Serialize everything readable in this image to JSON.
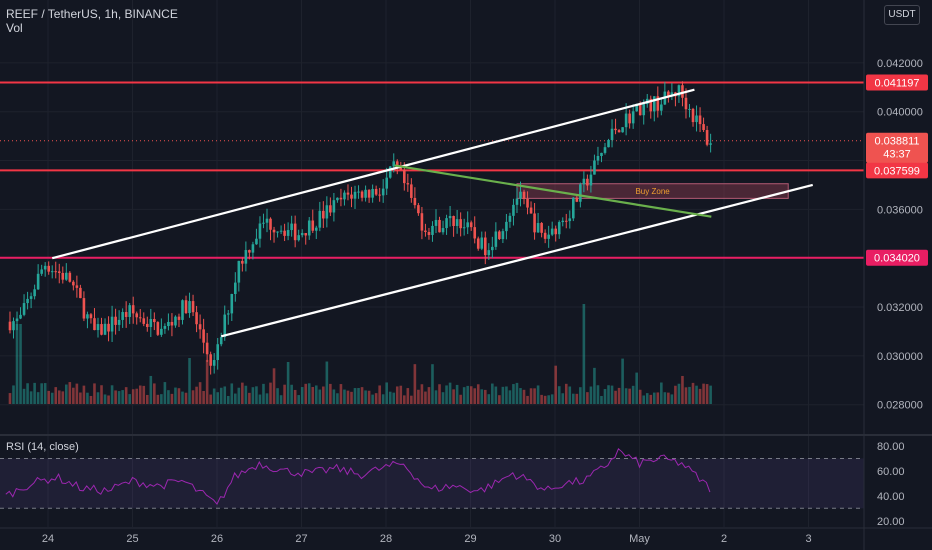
{
  "header": {
    "symbol_line": "REEF / TetherUS, 1h, BINANCE",
    "vol_label": "Vol",
    "currency_button": "USDT",
    "rsi_label": "RSI (14, close)"
  },
  "colors": {
    "background": "#131722",
    "up": "#26a69a",
    "down": "#ef5350",
    "trend_line": "#ffffff",
    "green_line": "#6ab04c",
    "level_red": "#f23645",
    "level_pink": "#e91e63",
    "buy_zone": "#8e3b50",
    "rsi_line": "#9c27b0",
    "axis_text": "#b2b5be"
  },
  "chart_data": [
    {
      "type": "candlestick",
      "title": "REEF / TetherUS, 1h, BINANCE",
      "x_ticks": [
        "24",
        "25",
        "26",
        "27",
        "28",
        "29",
        "30",
        "May",
        "2",
        "3"
      ],
      "y_ticks": [
        "0.042000",
        "0.040000",
        "0.038000",
        "0.036000",
        "0.034000",
        "0.032000",
        "0.030000",
        "0.028000"
      ],
      "ylim": [
        0.0268,
        0.0431
      ],
      "last_price": "0.038811",
      "countdown": "43:37",
      "price_levels": [
        {
          "label": "0.041197",
          "value": 0.041197,
          "color": "#f23645"
        },
        {
          "label": "0.037599",
          "value": 0.037599,
          "color": "#f23645"
        },
        {
          "label": "0.034020",
          "value": 0.03402,
          "color": "#e91e63"
        }
      ],
      "annotations": {
        "buy_zone_label": "Buy Zone",
        "buy_zone_range": [
          0.03645,
          0.03705
        ],
        "upper_channel": {
          "from": [
            24.05,
            0.034
          ],
          "to": [
            31.65,
            0.0409
          ]
        },
        "lower_channel": {
          "from": [
            26.05,
            0.0308
          ],
          "to": [
            33.05,
            0.037
          ]
        },
        "green_line": {
          "from": [
            28.1,
            0.0378
          ],
          "to": [
            31.85,
            0.0357
          ]
        }
      },
      "key_points": [
        [
          23.7,
          0.0314
        ],
        [
          24.0,
          0.0338
        ],
        [
          24.3,
          0.0331
        ],
        [
          24.6,
          0.0309
        ],
        [
          25.0,
          0.0318
        ],
        [
          25.4,
          0.031
        ],
        [
          25.7,
          0.0322
        ],
        [
          26.0,
          0.0295
        ],
        [
          26.3,
          0.0338
        ],
        [
          26.6,
          0.0355
        ],
        [
          27.0,
          0.035
        ],
        [
          27.3,
          0.0358
        ],
        [
          27.6,
          0.0366
        ],
        [
          28.0,
          0.0368
        ],
        [
          28.15,
          0.0378
        ],
        [
          28.5,
          0.0352
        ],
        [
          28.9,
          0.0356
        ],
        [
          29.2,
          0.0344
        ],
        [
          29.4,
          0.0352
        ],
        [
          29.6,
          0.0366
        ],
        [
          29.9,
          0.0348
        ],
        [
          30.2,
          0.0358
        ],
        [
          30.5,
          0.0377
        ],
        [
          30.75,
          0.0393
        ],
        [
          31.05,
          0.0402
        ],
        [
          31.3,
          0.0404
        ],
        [
          31.5,
          0.0409
        ],
        [
          31.72,
          0.0396
        ],
        [
          31.85,
          0.0388
        ]
      ]
    },
    {
      "type": "line",
      "title": "RSI (14, close)",
      "y_ticks": [
        "80.00",
        "60.00",
        "40.00",
        "20.00"
      ],
      "ylim": [
        15,
        88
      ],
      "band": [
        30,
        70
      ],
      "key_points": [
        [
          23.5,
          40
        ],
        [
          23.8,
          50
        ],
        [
          24.1,
          55
        ],
        [
          24.4,
          46
        ],
        [
          24.7,
          44
        ],
        [
          25.0,
          52
        ],
        [
          25.3,
          48
        ],
        [
          25.6,
          52
        ],
        [
          25.9,
          38
        ],
        [
          26.0,
          32
        ],
        [
          26.2,
          55
        ],
        [
          26.5,
          66
        ],
        [
          26.8,
          60
        ],
        [
          27.1,
          58
        ],
        [
          27.4,
          62
        ],
        [
          27.7,
          57
        ],
        [
          28.0,
          63
        ],
        [
          28.2,
          66
        ],
        [
          28.5,
          45
        ],
        [
          28.8,
          48
        ],
        [
          29.1,
          44
        ],
        [
          29.3,
          50
        ],
        [
          29.5,
          58
        ],
        [
          29.7,
          52
        ],
        [
          29.9,
          44
        ],
        [
          30.1,
          50
        ],
        [
          30.35,
          52
        ],
        [
          30.6,
          64
        ],
        [
          30.75,
          76
        ],
        [
          31.0,
          66
        ],
        [
          31.25,
          70
        ],
        [
          31.5,
          66
        ],
        [
          31.7,
          54
        ],
        [
          31.85,
          45
        ]
      ]
    }
  ]
}
